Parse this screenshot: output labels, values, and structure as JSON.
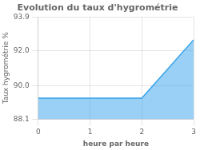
{
  "chart_data": {
    "type": "area",
    "title": "Evolution du taux d'hygrométrie",
    "x_label": "heure par heure",
    "y_label": "Taux hygrométrie %",
    "x": [
      0,
      1,
      2,
      2,
      3
    ],
    "values": [
      89.3,
      89.3,
      89.3,
      89.3,
      92.6
    ],
    "xlim": [
      0,
      3
    ],
    "xticks": [
      0,
      1,
      2,
      3
    ],
    "ylim": [
      88.1,
      93.9
    ],
    "yticks": [
      88.1,
      {
        "value": 90.0,
        "label": "90.0"
      },
      {
        "value": 92.0,
        "label": "92.0"
      },
      93.9
    ],
    "grid": true
  }
}
